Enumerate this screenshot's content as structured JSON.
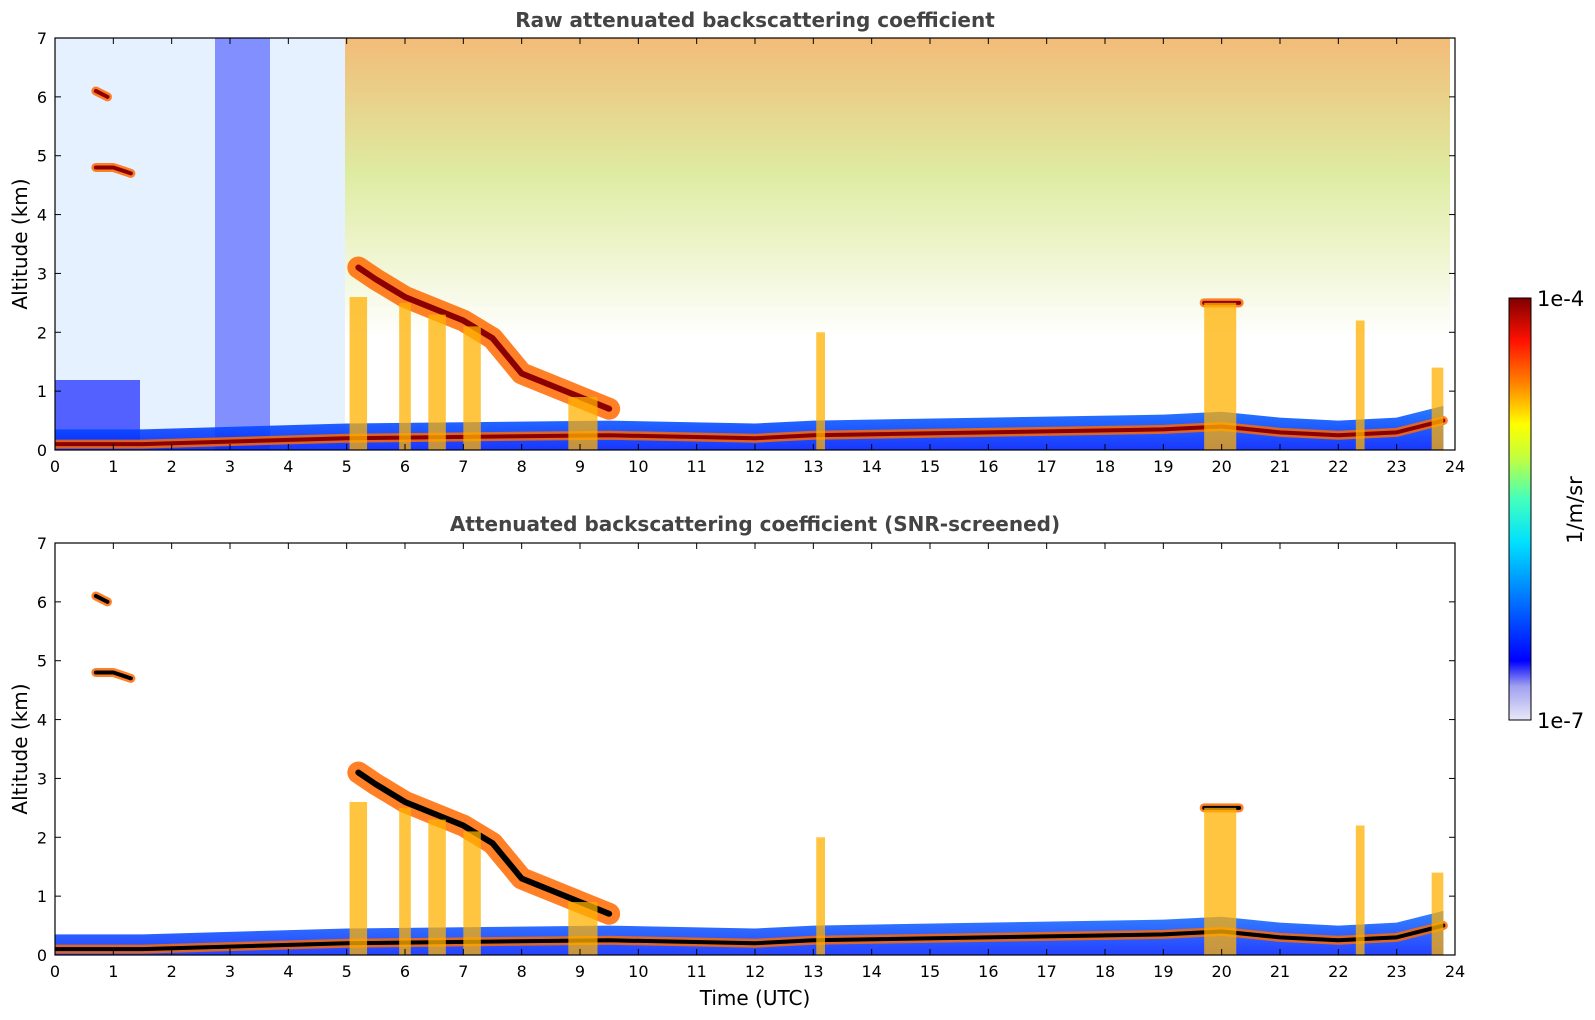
{
  "chart_data": [
    {
      "type": "heatmap",
      "title": "Raw attenuated backscattering coefficient",
      "xlabel": "",
      "ylabel": "Altitude (km)",
      "xlim": [
        0,
        24
      ],
      "ylim": [
        0,
        7
      ],
      "xticks": [
        "0",
        "1",
        "2",
        "3",
        "4",
        "5",
        "6",
        "7",
        "8",
        "9",
        "10",
        "11",
        "12",
        "13",
        "14",
        "15",
        "16",
        "17",
        "18",
        "19",
        "20",
        "21",
        "22",
        "23",
        "24"
      ],
      "yticks": [
        "0",
        "1",
        "2",
        "3",
        "4",
        "5",
        "6",
        "7"
      ],
      "grid": false,
      "colormap": "jet-like",
      "background_noise": "high-altitude yellow/orange noise after 5 UTC, blue speckle elsewhere",
      "layers": [
        {
          "name": "boundary layer base",
          "x": [
            0,
            1.5,
            5,
            9.5,
            12,
            13,
            19,
            20,
            21,
            22,
            23,
            23.8
          ],
          "y": [
            0.1,
            0.1,
            0.2,
            0.25,
            0.2,
            0.25,
            0.35,
            0.4,
            0.3,
            0.25,
            0.3,
            0.5
          ]
        },
        {
          "name": "descending cloud layer",
          "x": [
            5.2,
            5.5,
            6,
            7,
            7.5,
            8,
            8.5,
            9,
            9.5
          ],
          "y": [
            3.1,
            2.9,
            2.6,
            2.2,
            1.9,
            1.3,
            1.1,
            0.9,
            0.7
          ]
        },
        {
          "name": "mid-level cloud",
          "x": [
            0.7,
            1.0,
            1.3
          ],
          "y": [
            4.8,
            4.8,
            4.7
          ]
        },
        {
          "name": "upper cloud",
          "x": [
            0.7,
            0.9
          ],
          "y": [
            6.1,
            6.0
          ]
        },
        {
          "name": "cloud at 20 UTC",
          "x": [
            19.7,
            20.3
          ],
          "y": [
            2.5,
            2.5
          ]
        }
      ]
    },
    {
      "type": "heatmap",
      "title": "Attenuated backscattering coefficient (SNR-screened)",
      "xlabel": "Time (UTC)",
      "ylabel": "Altitude (km)",
      "xlim": [
        0,
        24
      ],
      "ylim": [
        0,
        7
      ],
      "xticks": [
        "0",
        "1",
        "2",
        "3",
        "4",
        "5",
        "6",
        "7",
        "8",
        "9",
        "10",
        "11",
        "12",
        "13",
        "14",
        "15",
        "16",
        "17",
        "18",
        "19",
        "20",
        "21",
        "22",
        "23",
        "24"
      ],
      "yticks": [
        "0",
        "1",
        "2",
        "3",
        "4",
        "5",
        "6",
        "7"
      ],
      "grid": false,
      "colormap": "jet-like",
      "background_noise": "screened (white)"
    }
  ],
  "colorbar": {
    "label": "1/m/sr",
    "max_label": "1e-4",
    "min_label": "1e-7",
    "colors": [
      "#e8e8f8",
      "#c8c8f0",
      "#a0a0f0",
      "#6060f0",
      "#0000ff",
      "#0040ff",
      "#0080ff",
      "#00c0ff",
      "#00ffff",
      "#40ffc0",
      "#80ff80",
      "#c0ff40",
      "#ffff00",
      "#ffc000",
      "#ff8000",
      "#ff4000",
      "#ff0000",
      "#c00000",
      "#800000"
    ]
  }
}
